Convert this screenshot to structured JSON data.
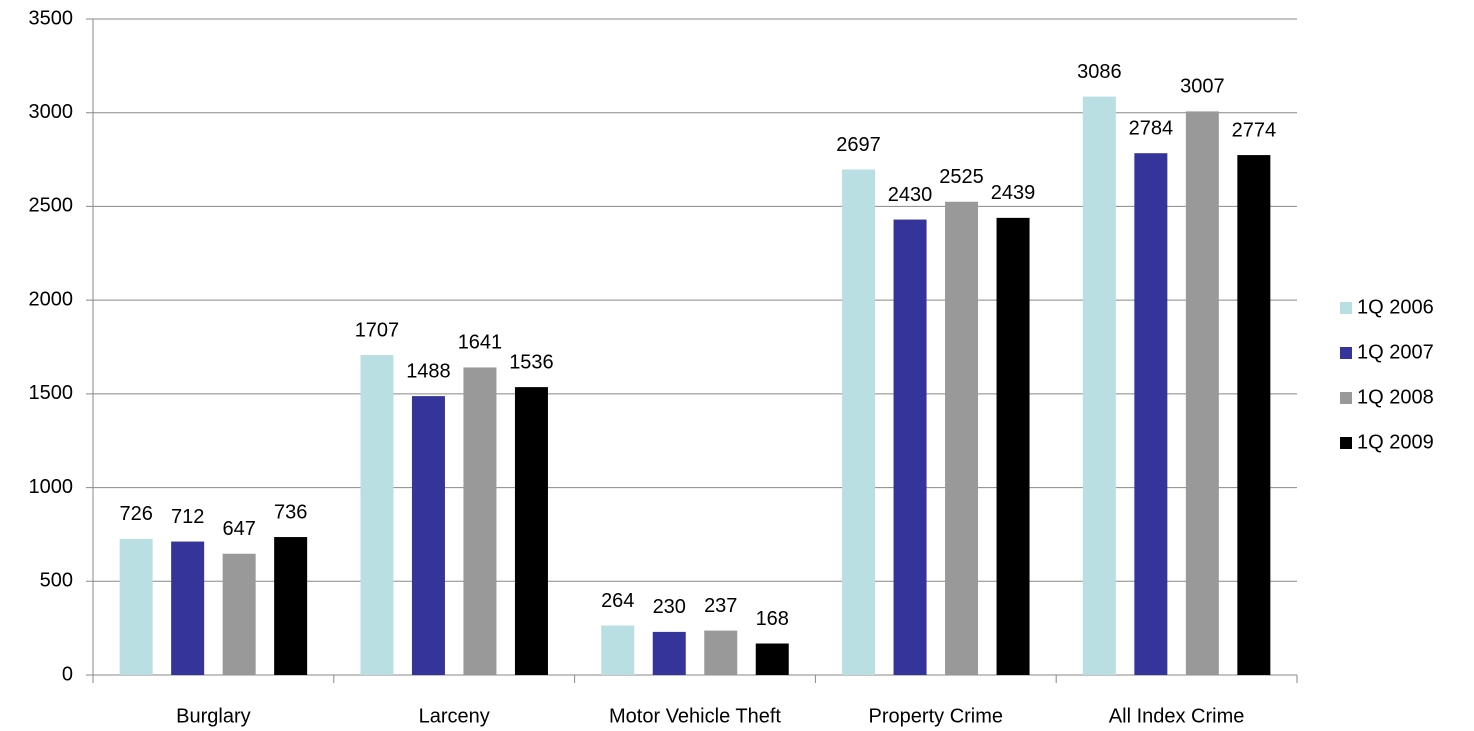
{
  "chart_data": {
    "type": "bar",
    "categories": [
      "Burglary",
      "Larceny",
      "Motor Vehicle Theft",
      "Property Crime",
      "All Index Crime"
    ],
    "series": [
      {
        "name": "1Q 2006",
        "color": "#b9dfe3",
        "values": [
          726,
          1707,
          264,
          2697,
          3086
        ]
      },
      {
        "name": "1Q 2007",
        "color": "#34349a",
        "values": [
          712,
          1488,
          230,
          2430,
          2784
        ]
      },
      {
        "name": "1Q 2008",
        "color": "#999999",
        "values": [
          647,
          1641,
          237,
          2525,
          3007
        ]
      },
      {
        "name": "1Q 2009",
        "color": "#000000",
        "values": [
          736,
          1536,
          168,
          2439,
          2774
        ]
      }
    ],
    "ylim": [
      0,
      3500
    ],
    "yticks": [
      0,
      500,
      1000,
      1500,
      2000,
      2500,
      3000,
      3500
    ],
    "grid": true,
    "legend": "right"
  }
}
